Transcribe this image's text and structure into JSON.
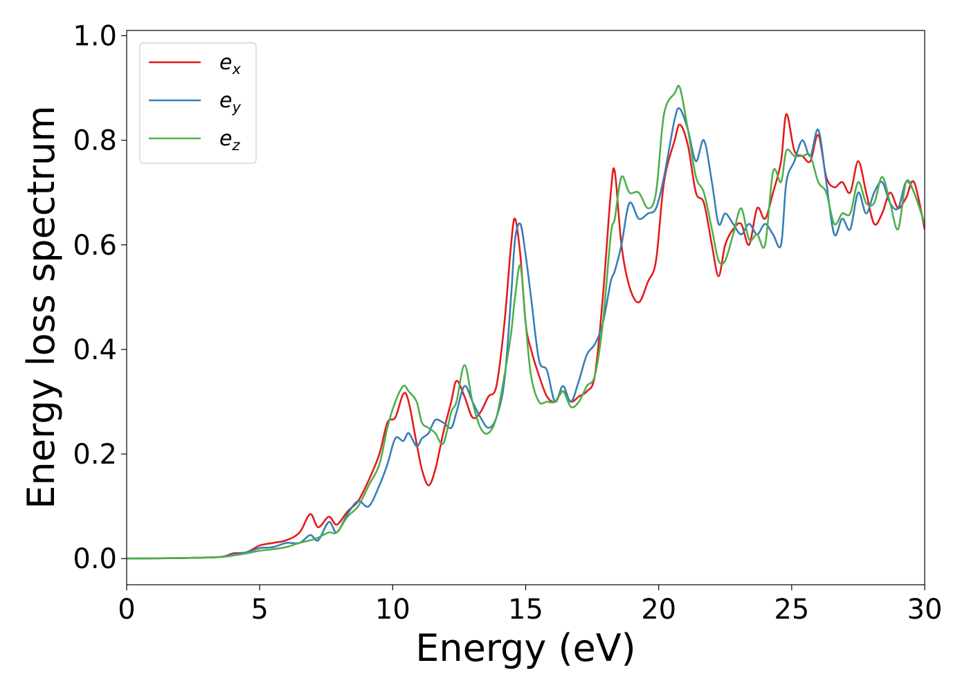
{
  "chart_data": {
    "type": "line",
    "title": "",
    "xlabel": "Energy (eV)",
    "ylabel": "Energy loss spectrum",
    "xlim": [
      0,
      30
    ],
    "ylim": [
      -0.05,
      1.01
    ],
    "xticks": [
      0,
      5,
      10,
      15,
      20,
      25,
      30
    ],
    "yticks": [
      0.0,
      0.2,
      0.4,
      0.6,
      0.8,
      1.0
    ],
    "xtick_labels": [
      "0",
      "5",
      "10",
      "15",
      "20",
      "25",
      "30"
    ],
    "ytick_labels": [
      "0.0",
      "0.2",
      "0.4",
      "0.6",
      "0.8",
      "1.0"
    ],
    "grid": false,
    "legend_position": "top-left",
    "series": [
      {
        "name": "e",
        "subscript": "x",
        "color": "#e41a1c",
        "x": [
          0,
          2,
          3.5,
          4,
          4.5,
          5,
          5.5,
          6,
          6.5,
          6.9,
          7.2,
          7.6,
          7.9,
          8.3,
          8.7,
          9.1,
          9.5,
          9.8,
          10.1,
          10.4,
          10.6,
          10.9,
          11.1,
          11.35,
          11.6,
          11.9,
          12.2,
          12.4,
          12.7,
          13.0,
          13.3,
          13.6,
          13.9,
          14.2,
          14.45,
          14.6,
          14.8,
          15.0,
          15.2,
          15.5,
          15.8,
          16.1,
          16.4,
          16.7,
          17.0,
          17.3,
          17.6,
          17.9,
          18.2,
          18.35,
          18.6,
          18.9,
          19.25,
          19.6,
          19.9,
          20.2,
          20.6,
          20.8,
          21.1,
          21.4,
          21.7,
          22.0,
          22.25,
          22.5,
          22.8,
          23.1,
          23.4,
          23.7,
          24.0,
          24.3,
          24.6,
          24.8,
          25.1,
          25.4,
          25.7,
          26.0,
          26.3,
          26.6,
          26.9,
          27.2,
          27.5,
          27.8,
          28.1,
          28.4,
          28.7,
          29.0,
          29.3,
          29.6,
          30.0
        ],
        "values": [
          0.0,
          0.001,
          0.003,
          0.01,
          0.012,
          0.025,
          0.03,
          0.035,
          0.05,
          0.085,
          0.06,
          0.08,
          0.065,
          0.09,
          0.11,
          0.15,
          0.2,
          0.26,
          0.27,
          0.315,
          0.3,
          0.22,
          0.17,
          0.14,
          0.17,
          0.24,
          0.3,
          0.34,
          0.31,
          0.27,
          0.28,
          0.31,
          0.33,
          0.45,
          0.6,
          0.65,
          0.58,
          0.45,
          0.4,
          0.35,
          0.31,
          0.3,
          0.32,
          0.3,
          0.31,
          0.32,
          0.35,
          0.5,
          0.7,
          0.74,
          0.6,
          0.52,
          0.49,
          0.53,
          0.57,
          0.72,
          0.8,
          0.83,
          0.79,
          0.7,
          0.68,
          0.6,
          0.54,
          0.6,
          0.63,
          0.64,
          0.6,
          0.67,
          0.65,
          0.7,
          0.76,
          0.85,
          0.78,
          0.77,
          0.76,
          0.81,
          0.73,
          0.71,
          0.72,
          0.7,
          0.76,
          0.7,
          0.64,
          0.66,
          0.7,
          0.67,
          0.69,
          0.72,
          0.63
        ]
      },
      {
        "name": "e",
        "subscript": "y",
        "color": "#377eb8",
        "x": [
          0,
          2,
          3.5,
          4,
          4.5,
          5,
          5.5,
          6,
          6.5,
          6.9,
          7.2,
          7.6,
          7.9,
          8.3,
          8.7,
          9.1,
          9.5,
          9.8,
          10.1,
          10.4,
          10.6,
          10.9,
          11.1,
          11.35,
          11.6,
          11.9,
          12.2,
          12.4,
          12.7,
          13.0,
          13.3,
          13.6,
          13.9,
          14.2,
          14.45,
          14.6,
          14.8,
          15.0,
          15.2,
          15.5,
          15.8,
          16.1,
          16.4,
          16.7,
          17.0,
          17.3,
          17.6,
          17.9,
          18.2,
          18.35,
          18.6,
          18.9,
          19.25,
          19.6,
          19.9,
          20.2,
          20.6,
          20.8,
          21.1,
          21.4,
          21.7,
          22.0,
          22.25,
          22.5,
          22.8,
          23.1,
          23.4,
          23.7,
          24.0,
          24.3,
          24.6,
          24.8,
          25.1,
          25.4,
          25.7,
          26.0,
          26.3,
          26.6,
          26.9,
          27.2,
          27.5,
          27.8,
          28.1,
          28.4,
          28.7,
          29.0,
          29.3,
          29.6,
          30.0
        ],
        "values": [
          0.0,
          0.001,
          0.003,
          0.008,
          0.012,
          0.02,
          0.022,
          0.03,
          0.03,
          0.045,
          0.035,
          0.07,
          0.05,
          0.085,
          0.11,
          0.1,
          0.14,
          0.18,
          0.23,
          0.225,
          0.24,
          0.215,
          0.23,
          0.24,
          0.265,
          0.26,
          0.25,
          0.28,
          0.33,
          0.3,
          0.27,
          0.25,
          0.27,
          0.34,
          0.5,
          0.61,
          0.64,
          0.58,
          0.5,
          0.38,
          0.36,
          0.3,
          0.33,
          0.3,
          0.34,
          0.39,
          0.41,
          0.45,
          0.53,
          0.55,
          0.6,
          0.68,
          0.65,
          0.66,
          0.67,
          0.73,
          0.84,
          0.86,
          0.82,
          0.76,
          0.8,
          0.72,
          0.64,
          0.66,
          0.64,
          0.62,
          0.64,
          0.62,
          0.64,
          0.62,
          0.6,
          0.72,
          0.76,
          0.8,
          0.77,
          0.82,
          0.72,
          0.62,
          0.65,
          0.63,
          0.7,
          0.66,
          0.7,
          0.72,
          0.68,
          0.67,
          0.72,
          0.7,
          0.64
        ]
      },
      {
        "name": "e",
        "subscript": "z",
        "color": "#4daf4a",
        "x": [
          0,
          2,
          3.5,
          4,
          4.5,
          5,
          5.5,
          6,
          6.5,
          6.9,
          7.2,
          7.6,
          7.9,
          8.3,
          8.7,
          9.1,
          9.5,
          9.8,
          10.1,
          10.4,
          10.6,
          10.9,
          11.1,
          11.35,
          11.6,
          11.9,
          12.2,
          12.4,
          12.7,
          13.0,
          13.3,
          13.6,
          13.9,
          14.2,
          14.45,
          14.6,
          14.8,
          15.0,
          15.2,
          15.5,
          15.8,
          16.1,
          16.4,
          16.7,
          17.0,
          17.3,
          17.6,
          17.9,
          18.2,
          18.35,
          18.6,
          18.9,
          19.25,
          19.6,
          19.9,
          20.2,
          20.6,
          20.8,
          21.1,
          21.4,
          21.7,
          22.0,
          22.25,
          22.5,
          22.8,
          23.1,
          23.4,
          23.7,
          24.0,
          24.3,
          24.6,
          24.8,
          25.1,
          25.4,
          25.7,
          26.0,
          26.3,
          26.6,
          26.9,
          27.2,
          27.5,
          27.8,
          28.1,
          28.4,
          28.7,
          29.0,
          29.3,
          29.6,
          30.0
        ],
        "values": [
          0.0,
          0.001,
          0.003,
          0.006,
          0.01,
          0.015,
          0.018,
          0.022,
          0.03,
          0.035,
          0.04,
          0.05,
          0.05,
          0.08,
          0.1,
          0.14,
          0.18,
          0.25,
          0.3,
          0.33,
          0.32,
          0.3,
          0.26,
          0.25,
          0.24,
          0.22,
          0.28,
          0.3,
          0.37,
          0.3,
          0.25,
          0.24,
          0.27,
          0.35,
          0.43,
          0.5,
          0.56,
          0.45,
          0.35,
          0.3,
          0.3,
          0.3,
          0.32,
          0.29,
          0.3,
          0.33,
          0.35,
          0.45,
          0.62,
          0.65,
          0.73,
          0.7,
          0.7,
          0.67,
          0.7,
          0.85,
          0.89,
          0.9,
          0.82,
          0.73,
          0.7,
          0.63,
          0.57,
          0.57,
          0.62,
          0.67,
          0.61,
          0.62,
          0.6,
          0.74,
          0.72,
          0.78,
          0.77,
          0.77,
          0.77,
          0.72,
          0.7,
          0.64,
          0.66,
          0.66,
          0.72,
          0.68,
          0.68,
          0.73,
          0.68,
          0.63,
          0.72,
          0.7,
          0.64
        ]
      }
    ]
  }
}
